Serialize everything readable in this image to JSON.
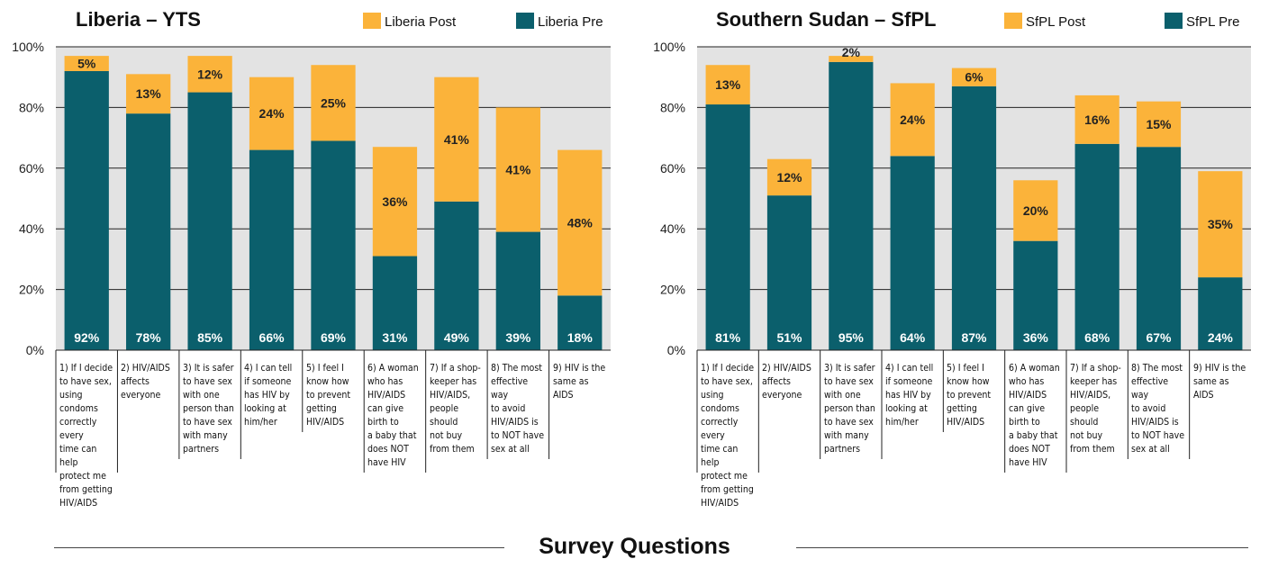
{
  "footer_title": "Survey Questions",
  "colors": {
    "pre": "#0b5f6c",
    "post": "#fbb33a",
    "plot_bg": "#e3e3e3"
  },
  "chart_data": [
    {
      "type": "bar",
      "stacked": true,
      "title": "Liberia – YTS",
      "legend": [
        "Liberia Post",
        "Liberia Pre"
      ],
      "legend_position": "top-right",
      "ylim": [
        0,
        100
      ],
      "yticks": [
        "0%",
        "20%",
        "40%",
        "60%",
        "80%",
        "100%"
      ],
      "grid": true,
      "categories": [
        "1) If I decide to have sex, using condoms correctly every time can help protect me from getting HIV/AIDS",
        "2) HIV/AIDS affects everyone",
        "3) It is safer to have sex with one person than to have sex with many partners",
        "4) I can tell if someone has HIV by looking at him/her",
        "5) I feel I know how to prevent getting HIV/AIDS",
        "6) A woman who has HIV/AIDS can give birth to a baby that does NOT have HIV",
        "7) If a shop-keeper has HIV/AIDS, people should not buy from them",
        "8) The most effective way to avoid HIV/AIDS is to NOT have sex at all",
        "9) HIV is the same as AIDS"
      ],
      "category_lines": [
        [
          "1) If I decide",
          "to have sex,",
          "using condoms",
          "correctly every",
          "time can help",
          "protect me",
          "from getting",
          "HIV/AIDS"
        ],
        [
          "2) HIV/AIDS",
          "affects",
          "everyone"
        ],
        [
          "3) It is safer",
          "to have sex",
          "with one",
          "person than",
          "to have sex",
          "with many",
          "partners"
        ],
        [
          "4) I can tell",
          "if someone",
          "has HIV by",
          "looking at",
          "him/her"
        ],
        [
          "5) I feel I",
          "know how",
          "to prevent",
          "getting",
          "HIV/AIDS"
        ],
        [
          "6) A woman",
          "who has",
          "HIV/AIDS",
          "can give",
          "birth to",
          "a baby that",
          "does NOT",
          "have HIV"
        ],
        [
          "7) If a shop-",
          "keeper has",
          "HIV/AIDS,",
          "people",
          "should",
          "not buy",
          "from them"
        ],
        [
          "8) The most",
          "effective",
          "way",
          "to avoid",
          "HIV/AIDS is",
          "to NOT have",
          "sex at all"
        ],
        [
          "9) HIV is the",
          "same as AIDS"
        ]
      ],
      "series": [
        {
          "name": "Liberia Pre",
          "values": [
            92,
            78,
            85,
            66,
            69,
            31,
            49,
            39,
            18
          ],
          "labels": [
            "92%",
            "78%",
            "85%",
            "66%",
            "69%",
            "31%",
            "49%",
            "39%",
            "18%"
          ]
        },
        {
          "name": "Liberia Post",
          "values": [
            5,
            13,
            12,
            24,
            25,
            36,
            41,
            41,
            48
          ],
          "labels": [
            "5%",
            "13%",
            "12%",
            "24%",
            "25%",
            "36%",
            "41%",
            "41%",
            "48%"
          ]
        }
      ]
    },
    {
      "type": "bar",
      "stacked": true,
      "title": "Southern Sudan – SfPL",
      "legend": [
        "SfPL Post",
        "SfPL Pre"
      ],
      "legend_position": "top-right",
      "ylim": [
        0,
        100
      ],
      "yticks": [
        "0%",
        "20%",
        "40%",
        "60%",
        "80%",
        "100%"
      ],
      "grid": true,
      "categories": [
        "1) If I decide to have sex, using condoms correctly every time can help protect me from getting HIV/AIDS",
        "2) HIV/AIDS affects everyone",
        "3) It is safer to have sex with one person than to have sex with many partners",
        "4) I can tell if someone has HIV by looking at him/her",
        "5) I feel I know how to prevent getting HIV/AIDS",
        "6) A woman who has HIV/AIDS can give birth to a baby that does NOT have HIV",
        "7) If a shop-keeper has HIV/AIDS, people should not buy from them",
        "8) The most effective way to avoid HIV/AIDS is to NOT have sex at all",
        "9) HIV is the same as AIDS"
      ],
      "category_lines": [
        [
          "1) If I decide",
          "to have sex,",
          "using condoms",
          "correctly every",
          "time can help",
          "protect me",
          "from getting",
          "HIV/AIDS"
        ],
        [
          "2) HIV/AIDS",
          "affects",
          "everyone"
        ],
        [
          "3) It is safer",
          "to have sex",
          "with one",
          "person than",
          "to have sex",
          "with many",
          "partners"
        ],
        [
          "4) I can tell",
          "if someone",
          "has HIV by",
          "looking at",
          "him/her"
        ],
        [
          "5) I feel I",
          "know how",
          "to prevent",
          "getting",
          "HIV/AIDS"
        ],
        [
          "6) A woman",
          "who has",
          "HIV/AIDS",
          "can give",
          "birth to",
          "a baby that",
          "does NOT",
          "have HIV"
        ],
        [
          "7) If a shop-",
          "keeper has",
          "HIV/AIDS,",
          "people",
          "should",
          "not buy",
          "from them"
        ],
        [
          "8) The most",
          "effective",
          "way",
          "to avoid",
          "HIV/AIDS is",
          "to NOT have",
          "sex at all"
        ],
        [
          "9) HIV is the",
          "same as AIDS"
        ]
      ],
      "series": [
        {
          "name": "SfPL Pre",
          "values": [
            81,
            51,
            95,
            64,
            87,
            36,
            68,
            67,
            24
          ],
          "labels": [
            "81%",
            "51%",
            "95%",
            "64%",
            "87%",
            "36%",
            "68%",
            "67%",
            "24%"
          ]
        },
        {
          "name": "SfPL Post",
          "values": [
            13,
            12,
            2,
            24,
            6,
            20,
            16,
            15,
            35
          ],
          "labels": [
            "13%",
            "12%",
            "2%",
            "24%",
            "6%",
            "20%",
            "16%",
            "15%",
            "35%"
          ]
        }
      ]
    }
  ]
}
